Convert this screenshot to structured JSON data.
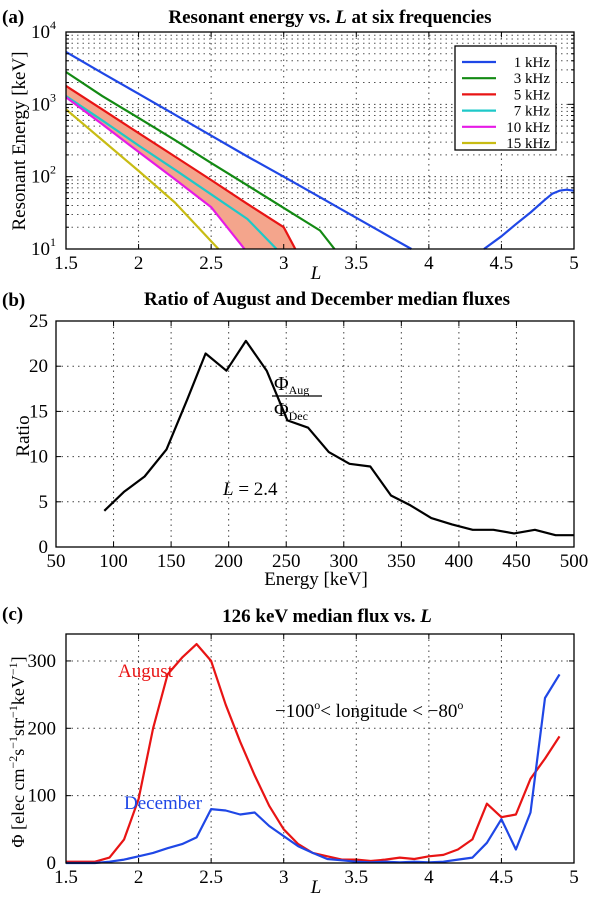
{
  "chart_data": [
    {
      "type": "line",
      "panel_label": "(a)",
      "title_prefix": "Resonant energy vs. ",
      "title_var": "L",
      "title_suffix": " at six frequencies",
      "xlabel": "L",
      "ylabel": "Resonant Energy [keV]",
      "xlim": [
        1.5,
        5
      ],
      "ylim": [
        10,
        10000
      ],
      "yscale": "log",
      "grid": true,
      "legend_position": "top-right",
      "x_ticks": [
        1.5,
        2,
        2.5,
        3,
        3.5,
        4,
        4.5,
        5
      ],
      "x_tick_labels": [
        "1.5",
        "2",
        "2.5",
        "3",
        "3.5",
        "4",
        "4.5",
        "5"
      ],
      "y_ticks": [
        10,
        100,
        1000,
        10000
      ],
      "y_tick_base": "10",
      "y_tick_exponents": [
        "1",
        "2",
        "3",
        "4"
      ],
      "band": {
        "between": [
          "5 kHz",
          "10 kHz"
        ],
        "color": "#f4a58c"
      },
      "series": [
        {
          "name": "1 kHz",
          "color": "#1f47e6",
          "segments": [
            {
              "x": [
                1.5,
                1.75,
                2.0,
                2.25,
                2.5,
                2.75,
                3.0,
                3.25,
                3.5,
                3.75,
                3.88
              ],
              "y": [
                5300,
                2700,
                1400,
                720,
                370,
                190,
                100,
                52,
                27,
                14,
                10
              ]
            },
            {
              "x": [
                4.38,
                4.5,
                4.6,
                4.7,
                4.8,
                4.85,
                4.9,
                4.95,
                5.0
              ],
              "y": [
                10,
                15,
                22,
                32,
                48,
                58,
                64,
                66,
                64
              ]
            }
          ]
        },
        {
          "name": "3 kHz",
          "color": "#138a13",
          "segments": [
            {
              "x": [
                1.5,
                1.75,
                2.0,
                2.25,
                2.5,
                2.75,
                3.0,
                3.25,
                3.35
              ],
              "y": [
                2800,
                1300,
                650,
                320,
                155,
                76,
                37,
                18,
                10
              ]
            }
          ]
        },
        {
          "name": "5 kHz",
          "color": "#e81414",
          "segments": [
            {
              "x": [
                1.5,
                1.75,
                2.0,
                2.25,
                2.5,
                2.75,
                3.0,
                3.08
              ],
              "y": [
                1800,
                850,
                400,
                190,
                90,
                42,
                20,
                10
              ]
            }
          ]
        },
        {
          "name": "7 kHz",
          "color": "#1ec8c8",
          "segments": [
            {
              "x": [
                1.5,
                1.75,
                2.0,
                2.25,
                2.5,
                2.75,
                2.95
              ],
              "y": [
                1300,
                600,
                270,
                125,
                57,
                26,
                10
              ]
            }
          ]
        },
        {
          "name": "10 kHz",
          "color": "#e61ae6",
          "segments": [
            {
              "x": [
                1.5,
                1.75,
                2.0,
                2.25,
                2.5,
                2.73
              ],
              "y": [
                1250,
                530,
                220,
                92,
                38,
                10
              ]
            }
          ]
        },
        {
          "name": "15 kHz",
          "color": "#c8bc14",
          "segments": [
            {
              "x": [
                1.5,
                1.75,
                2.0,
                2.25,
                2.55
              ],
              "y": [
                850,
                320,
                120,
                44,
                10
              ]
            }
          ]
        }
      ]
    },
    {
      "type": "line",
      "panel_label": "(b)",
      "title": "Ratio of August and December median fluxes",
      "xlabel": "Energy [keV]",
      "ylabel": "Ratio",
      "xlim": [
        50,
        500
      ],
      "ylim": [
        0,
        25
      ],
      "grid": true,
      "x_ticks": [
        50,
        100,
        150,
        200,
        250,
        300,
        350,
        400,
        450,
        500
      ],
      "x_tick_labels": [
        "50",
        "100",
        "150",
        "200",
        "250",
        "300",
        "350",
        "400",
        "450",
        "500"
      ],
      "y_ticks": [
        0,
        5,
        10,
        15,
        20,
        25
      ],
      "y_tick_labels": [
        "0",
        "5",
        "10",
        "15",
        "20",
        "25"
      ],
      "annotations": {
        "formula_numerator": "Φ",
        "formula_numerator_sub": "Aug",
        "formula_denominator": "Φ",
        "formula_denominator_sub": "Dec",
        "l_var": "L",
        "l_value": " = 2.4"
      },
      "series": [
        {
          "color": "#000000",
          "x": [
            92,
            109,
            127,
            146,
            164,
            180,
            198,
            215,
            233,
            251,
            269,
            287,
            305,
            323,
            341,
            358,
            376,
            394,
            412,
            430,
            448,
            466,
            484,
            500
          ],
          "y": [
            4.0,
            6.1,
            7.8,
            10.8,
            16.3,
            21.4,
            19.5,
            22.8,
            19.5,
            14.0,
            13.2,
            10.5,
            9.2,
            8.9,
            5.7,
            4.6,
            3.2,
            2.5,
            1.9,
            1.9,
            1.5,
            1.9,
            1.3,
            1.3
          ]
        }
      ]
    },
    {
      "type": "line",
      "panel_label": "(c)",
      "title_prefix": "126 keV median flux vs. ",
      "title_var": "L",
      "title_suffix": "",
      "xlabel": "L",
      "ylabel_prefix": "Φ [elec cm",
      "ylabel_sup1": "−2",
      "ylabel_mid1": "s",
      "ylabel_sup2": "−1",
      "ylabel_mid2": "str",
      "ylabel_sup3": "−1",
      "ylabel_mid3": "keV",
      "ylabel_sup4": "−1",
      "ylabel_suffix": "]",
      "xlim": [
        1.5,
        5
      ],
      "ylim": [
        0,
        340
      ],
      "grid": true,
      "x_ticks": [
        1.5,
        2,
        2.5,
        3,
        3.5,
        4,
        4.5,
        5
      ],
      "x_tick_labels": [
        "1.5",
        "2",
        "2.5",
        "3",
        "3.5",
        "4",
        "4.5",
        "5"
      ],
      "y_ticks": [
        0,
        100,
        200,
        300
      ],
      "y_tick_labels": [
        "0",
        "100",
        "200",
        "300"
      ],
      "annotations": {
        "lon_a": "−100",
        "lon_deg": "o",
        "lon_b": "< longitude < −80",
        "august_label": "August",
        "december_label": "December"
      },
      "series": [
        {
          "name": "August",
          "color": "#e81414",
          "x": [
            1.5,
            1.6,
            1.7,
            1.8,
            1.9,
            2.0,
            2.1,
            2.2,
            2.3,
            2.4,
            2.5,
            2.6,
            2.7,
            2.8,
            2.9,
            3.0,
            3.1,
            3.2,
            3.3,
            3.4,
            3.5,
            3.6,
            3.7,
            3.8,
            3.9,
            4.0,
            4.1,
            4.2,
            4.3,
            4.4,
            4.5,
            4.6,
            4.7,
            4.8,
            4.9
          ],
          "y": [
            2,
            2,
            2,
            8,
            35,
            95,
            200,
            280,
            305,
            325,
            300,
            235,
            180,
            130,
            85,
            50,
            28,
            15,
            10,
            5,
            5,
            3,
            5,
            8,
            6,
            10,
            12,
            20,
            35,
            88,
            68,
            72,
            125,
            155,
            188
          ]
        },
        {
          "name": "December",
          "color": "#1f47e6",
          "x": [
            1.5,
            1.6,
            1.7,
            1.8,
            1.9,
            2.0,
            2.1,
            2.2,
            2.3,
            2.4,
            2.5,
            2.6,
            2.7,
            2.8,
            2.9,
            3.0,
            3.1,
            3.2,
            3.3,
            3.4,
            3.5,
            3.6,
            3.7,
            3.8,
            3.9,
            4.0,
            4.1,
            4.2,
            4.3,
            4.4,
            4.5,
            4.6,
            4.7,
            4.8,
            4.9
          ],
          "y": [
            0,
            0,
            0,
            2,
            5,
            10,
            15,
            22,
            28,
            38,
            80,
            78,
            72,
            75,
            55,
            40,
            25,
            15,
            6,
            4,
            2,
            1,
            2,
            1,
            2,
            1,
            2,
            5,
            8,
            30,
            65,
            20,
            75,
            245,
            280
          ]
        }
      ]
    }
  ]
}
